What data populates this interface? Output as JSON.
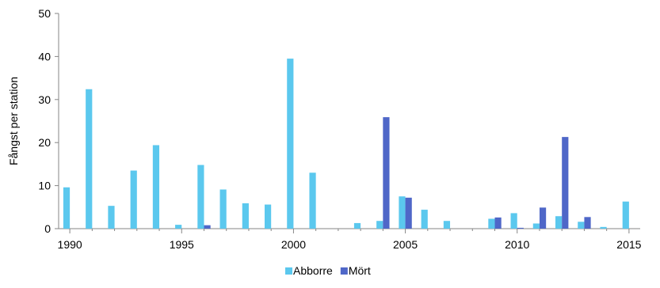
{
  "chart_data": {
    "type": "bar",
    "title": "",
    "xlabel": "",
    "ylabel": "Fångst per station",
    "ylim": [
      0,
      50
    ],
    "yticks": [
      0,
      10,
      20,
      30,
      40,
      50
    ],
    "xlim": [
      1990,
      2015
    ],
    "xticks": [
      1990,
      1995,
      2000,
      2005,
      2010,
      2015
    ],
    "grid": false,
    "legend_position": "bottom",
    "series": [
      {
        "name": "Abborre",
        "color": "#5bc8ee",
        "points": [
          {
            "x": 1990,
            "y": 9.6
          },
          {
            "x": 1991,
            "y": 32.4
          },
          {
            "x": 1992,
            "y": 5.3
          },
          {
            "x": 1993,
            "y": 13.5
          },
          {
            "x": 1994,
            "y": 19.4
          },
          {
            "x": 1995,
            "y": 0.9
          },
          {
            "x": 1996,
            "y": 14.8
          },
          {
            "x": 1997,
            "y": 9.1
          },
          {
            "x": 1998,
            "y": 5.9
          },
          {
            "x": 1999,
            "y": 5.6
          },
          {
            "x": 2000,
            "y": 39.5
          },
          {
            "x": 2001,
            "y": 13.0
          },
          {
            "x": 2003,
            "y": 1.3
          },
          {
            "x": 2004,
            "y": 1.8
          },
          {
            "x": 2005,
            "y": 7.5
          },
          {
            "x": 2006,
            "y": 4.4
          },
          {
            "x": 2007,
            "y": 1.8
          },
          {
            "x": 2009,
            "y": 2.3
          },
          {
            "x": 2010,
            "y": 3.6
          },
          {
            "x": 2011,
            "y": 1.2
          },
          {
            "x": 2012,
            "y": 2.9
          },
          {
            "x": 2013,
            "y": 1.6
          },
          {
            "x": 2014,
            "y": 0.4
          },
          {
            "x": 2015,
            "y": 6.3
          }
        ]
      },
      {
        "name": "Mört",
        "color": "#4f67c8",
        "points": [
          {
            "x": 1996,
            "y": 0.8
          },
          {
            "x": 2004,
            "y": 25.9
          },
          {
            "x": 2005,
            "y": 7.2
          },
          {
            "x": 2009,
            "y": 2.6
          },
          {
            "x": 2010,
            "y": 0.2
          },
          {
            "x": 2011,
            "y": 4.9
          },
          {
            "x": 2012,
            "y": 21.3
          },
          {
            "x": 2013,
            "y": 2.7
          }
        ]
      }
    ]
  }
}
